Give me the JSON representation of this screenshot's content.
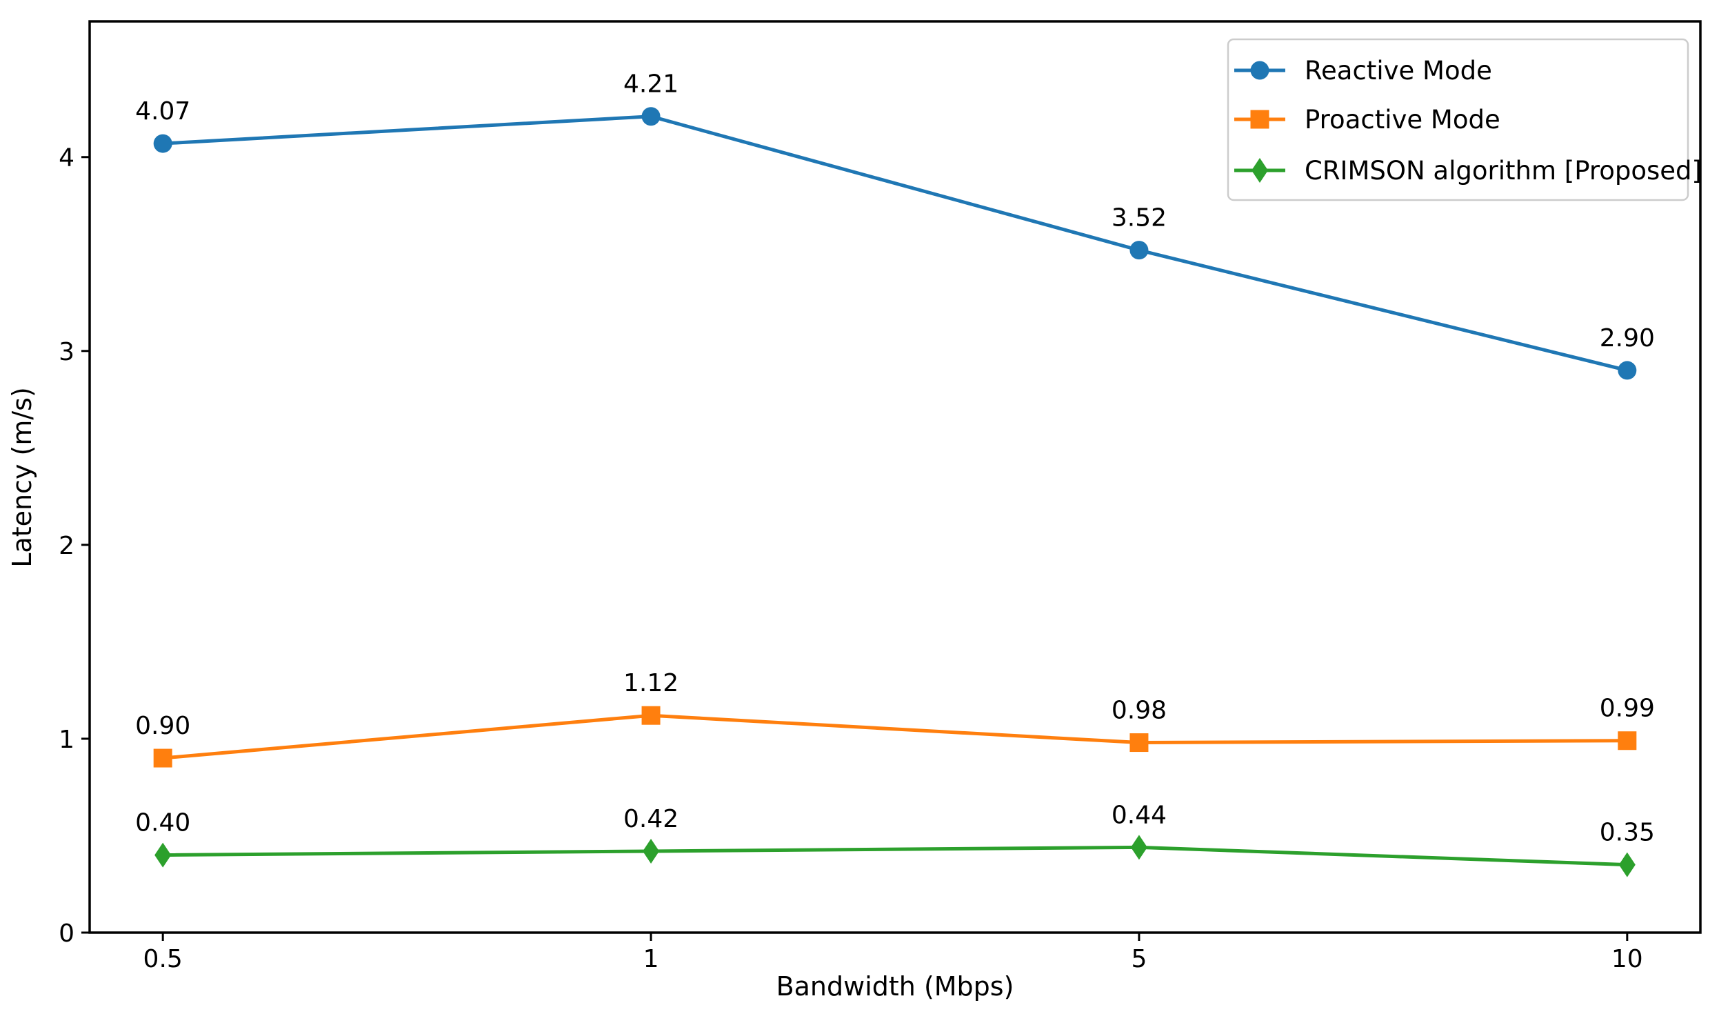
{
  "chart_data": {
    "type": "line",
    "title": "",
    "xlabel": "Bandwidth (Mbps)",
    "ylabel": "Latency (m/s)",
    "categories": [
      "0.5",
      "1",
      "5",
      "10"
    ],
    "x_tick_labels": [
      "0.5",
      "1",
      "5",
      "10"
    ],
    "y_ticks": [
      "0",
      "1",
      "2",
      "3",
      "4"
    ],
    "y_tick_values": [
      0,
      1,
      2,
      3,
      4
    ],
    "ylim": [
      0,
      4.7
    ],
    "grid": false,
    "legend_position": "upper right",
    "axis_color": "#000000",
    "legend_border_color": "#cccccc",
    "series": [
      {
        "name": "Reactive Mode",
        "marker": "circle",
        "color": "#1f77b4",
        "values": [
          4.07,
          4.21,
          3.52,
          2.9
        ],
        "point_labels": [
          "4.07",
          "4.21",
          "3.52",
          "2.90"
        ]
      },
      {
        "name": "Proactive Mode",
        "marker": "square",
        "color": "#ff7f0e",
        "values": [
          0.9,
          1.12,
          0.98,
          0.99
        ],
        "point_labels": [
          "0.90",
          "1.12",
          "0.98",
          "0.99"
        ]
      },
      {
        "name": "CRIMSON algorithm [Proposed]",
        "marker": "diamond",
        "color": "#2ca02c",
        "values": [
          0.4,
          0.42,
          0.44,
          0.35
        ],
        "point_labels": [
          "0.40",
          "0.42",
          "0.44",
          "0.35"
        ]
      }
    ]
  }
}
